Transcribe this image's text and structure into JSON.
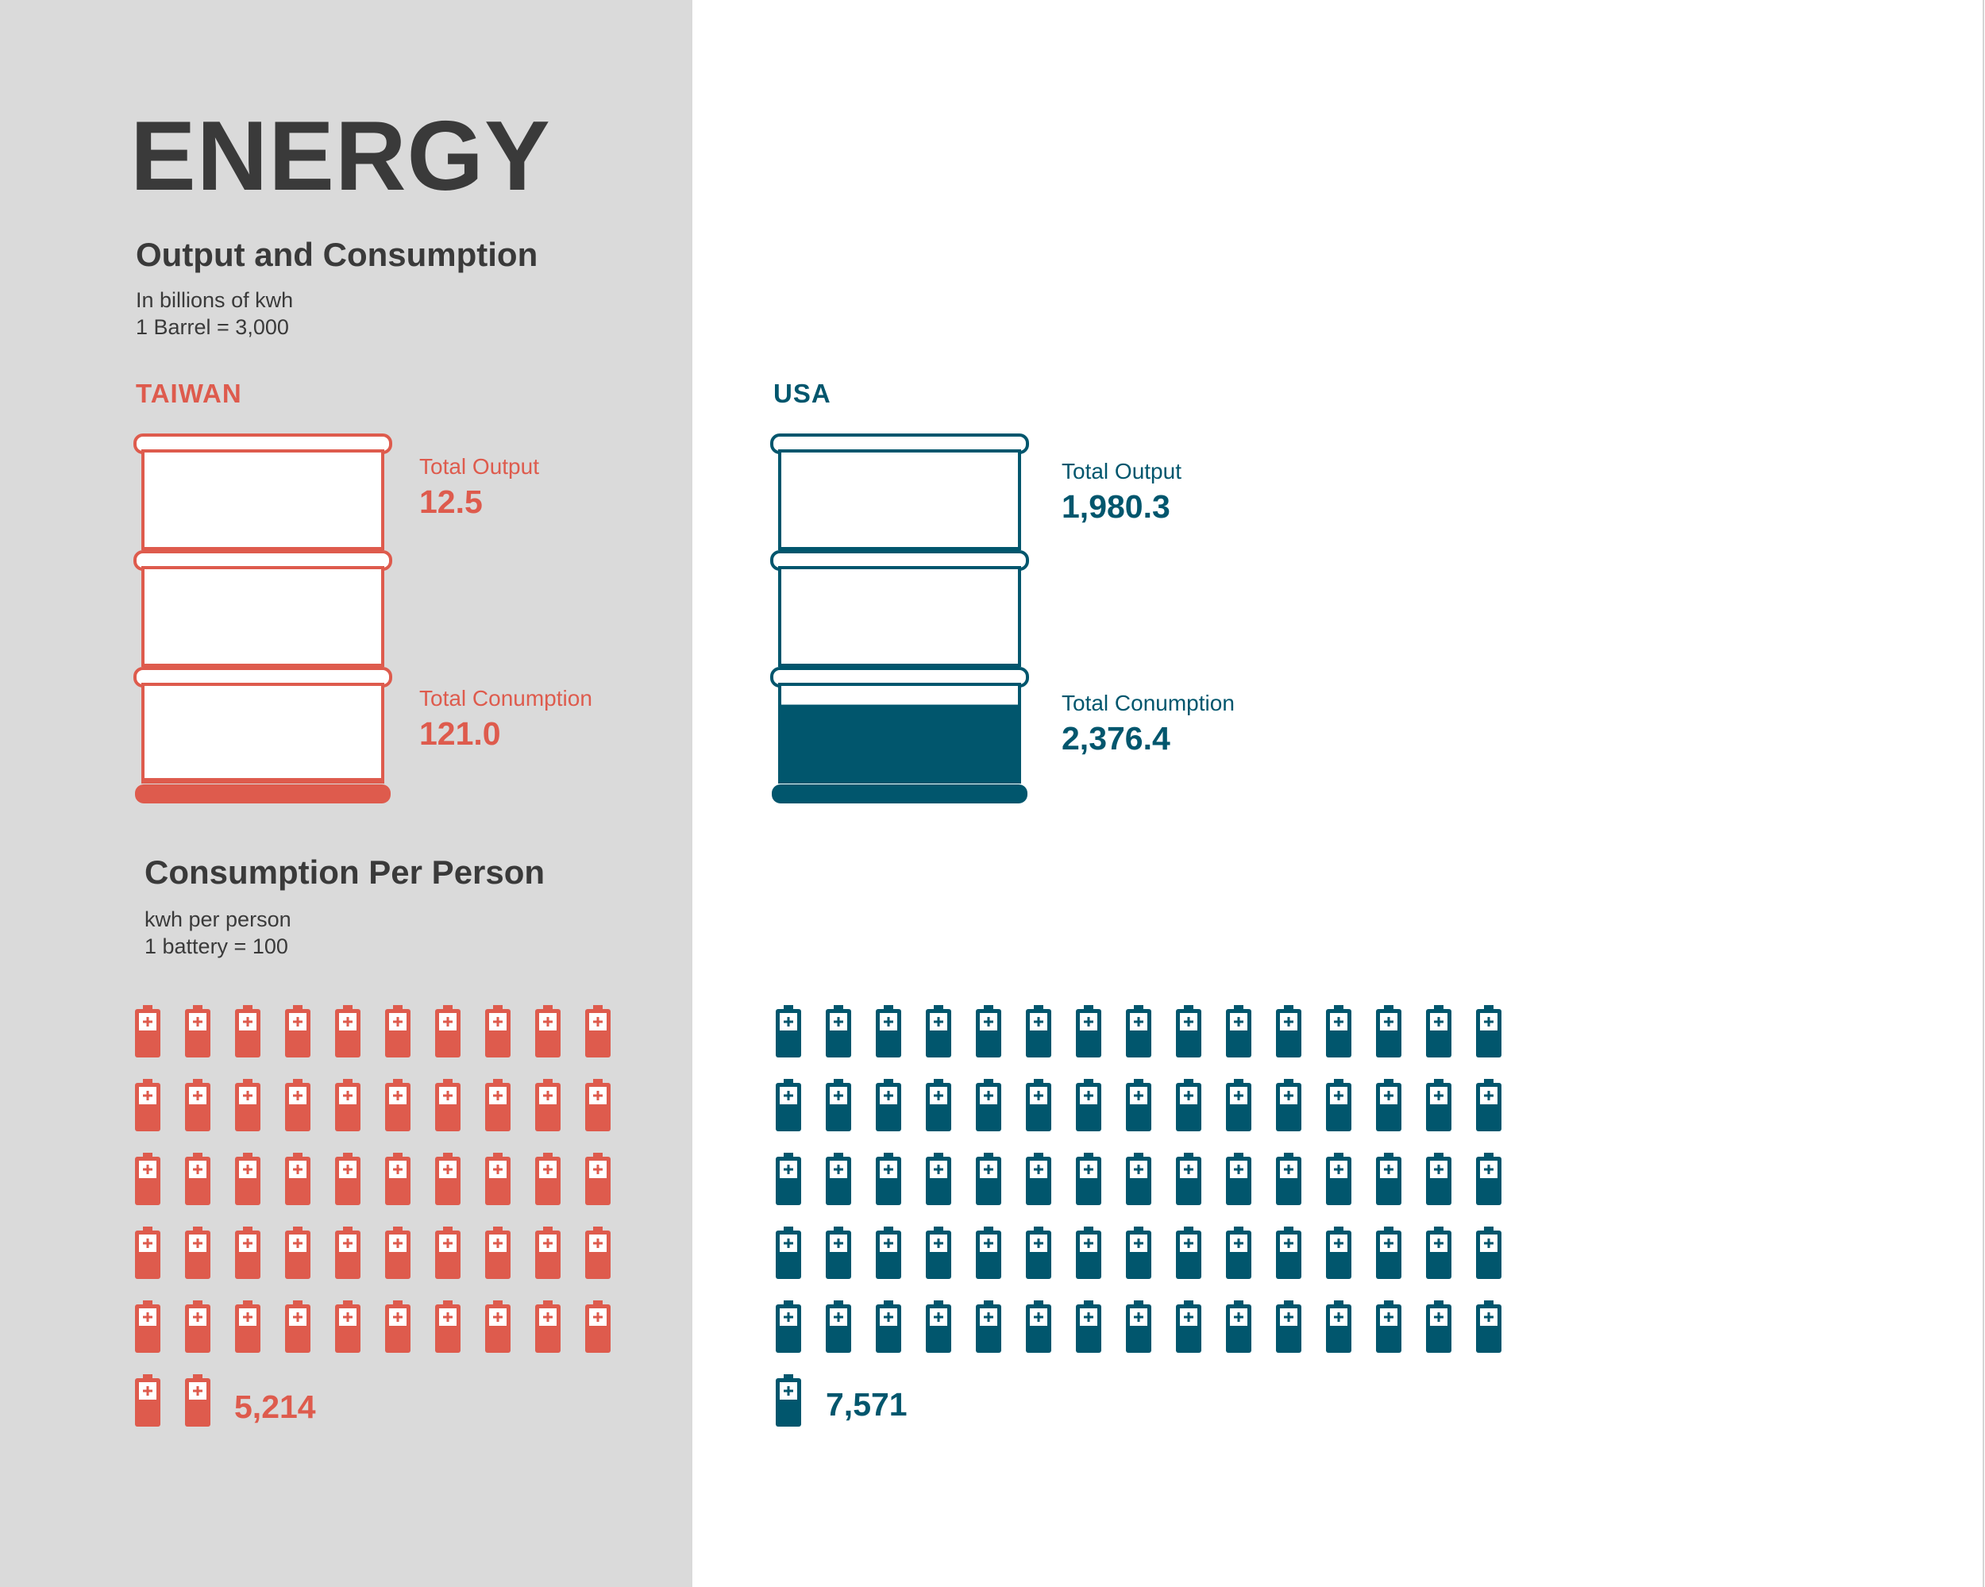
{
  "title": "ENERGY",
  "section1": {
    "title": "Output and Consumption",
    "unit_note": "In billions of kwh",
    "scale_note": "1 Barrel = 3,000"
  },
  "section2": {
    "title": "Consumption Per Person",
    "unit_note": "kwh per person",
    "scale_note": "1 battery = 100"
  },
  "colors": {
    "taiwan": "#de5b4d",
    "usa": "#01566d",
    "panel": "#dadada",
    "text": "#3a3a3a"
  },
  "icons": {
    "barrel": "barrel-icon",
    "battery": "battery-icon"
  },
  "chart_data": [
    {
      "type": "bar",
      "title": "Output and Consumption",
      "unit": "billions of kwh",
      "barrel_value": 3000,
      "categories": [
        "Total Output",
        "Total Conumption"
      ],
      "series": [
        {
          "name": "TAIWAN",
          "values": [
            12.5,
            121.0
          ],
          "labels": [
            "12.5",
            "121.0"
          ]
        },
        {
          "name": "USA",
          "values": [
            1980.3,
            2376.4
          ],
          "labels": [
            "1,980.3",
            "2,376.4"
          ]
        }
      ]
    },
    {
      "type": "bar",
      "title": "Consumption Per Person",
      "unit": "kwh per person",
      "battery_value": 100,
      "series": [
        {
          "name": "TAIWAN",
          "value": 5214,
          "label": "5,214",
          "batteries_shown": 52
        },
        {
          "name": "USA",
          "value": 7571,
          "label": "7,571",
          "batteries_shown": 76
        }
      ]
    }
  ]
}
